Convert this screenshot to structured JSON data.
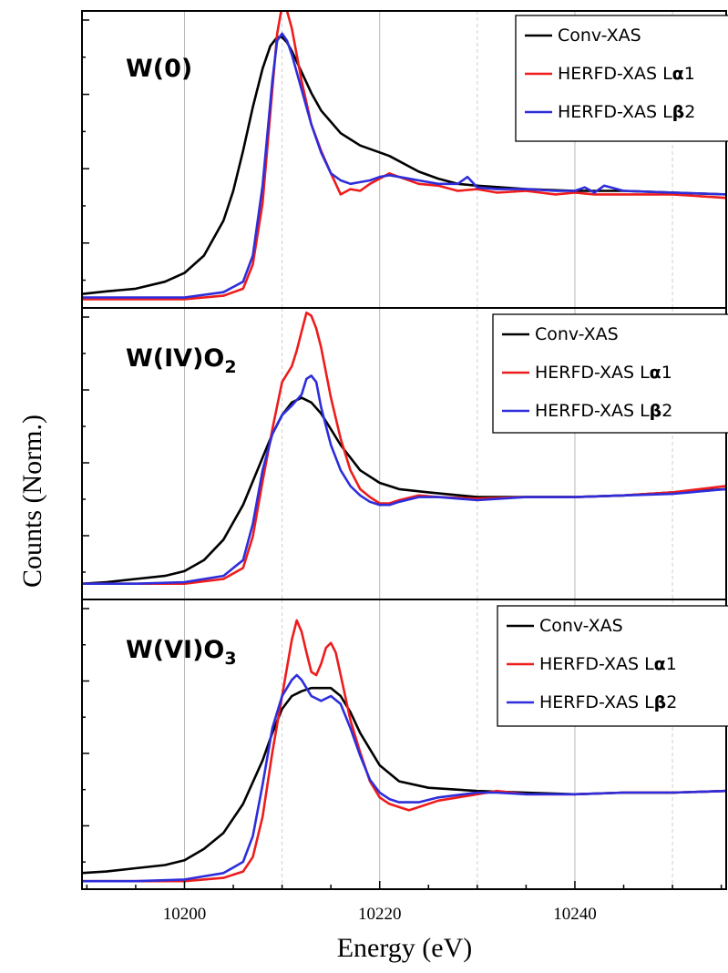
{
  "chart_data": {
    "type": "line",
    "xlabel": "Energy (eV)",
    "ylabel": "Counts (Norm.)",
    "xlim": [
      10189.5,
      10255.5
    ],
    "x_ticks": [
      "10200",
      "10220",
      "10240"
    ],
    "grid": "vertical lines at major and minor x ticks",
    "legend_placement": "top-right in each panel",
    "colors": {
      "conv": "#000000",
      "la1": "#ee1c1c",
      "lb2": "#2d2ddb"
    },
    "panels": [
      {
        "title": "W(0)",
        "title_main": "W(0)",
        "title_sub": "",
        "title_tail": "",
        "ylim": [
          -0.05,
          1.65
        ],
        "legend": [
          {
            "prefix": "Conv-XAS",
            "symbol": "",
            "suffix": ""
          },
          {
            "prefix": "HERFD-XAS L",
            "symbol": "α",
            "suffix": "1"
          },
          {
            "prefix": "HERFD-XAS L",
            "symbol": "β",
            "suffix": "2"
          }
        ],
        "series": [
          {
            "key": "conv",
            "x": [
              10189.5,
              10192,
              10195,
              10198,
              10200,
              10202,
              10204,
              10205,
              10206,
              10207,
              10208,
              10208.8,
              10209.5,
              10210,
              10210.5,
              10211,
              10212,
              10213,
              10214,
              10216,
              10218,
              10220,
              10221,
              10224,
              10226,
              10228,
              10230,
              10235,
              10240,
              10245,
              10250,
              10255.5
            ],
            "y": [
              0.03,
              0.045,
              0.06,
              0.1,
              0.15,
              0.25,
              0.45,
              0.62,
              0.85,
              1.1,
              1.32,
              1.45,
              1.5,
              1.5,
              1.47,
              1.42,
              1.3,
              1.18,
              1.08,
              0.95,
              0.88,
              0.84,
              0.82,
              0.73,
              0.69,
              0.66,
              0.65,
              0.63,
              0.62,
              0.62,
              0.61,
              0.6
            ]
          },
          {
            "key": "la1",
            "x": [
              10189.5,
              10195,
              10200,
              10204,
              10206,
              10207,
              10208,
              10209,
              10209.5,
              10210,
              10210.5,
              10211,
              10212,
              10213,
              10214,
              10215,
              10216,
              10217,
              10218,
              10219,
              10220,
              10221,
              10222,
              10224,
              10226,
              10228,
              10230,
              10232,
              10235,
              10238,
              10240,
              10242,
              10245,
              10250,
              10255.5
            ],
            "y": [
              0.0,
              0.0,
              0.0,
              0.02,
              0.06,
              0.2,
              0.55,
              1.2,
              1.52,
              1.68,
              1.65,
              1.55,
              1.25,
              1.0,
              0.85,
              0.72,
              0.6,
              0.63,
              0.62,
              0.66,
              0.69,
              0.72,
              0.7,
              0.66,
              0.65,
              0.62,
              0.63,
              0.61,
              0.62,
              0.6,
              0.61,
              0.6,
              0.6,
              0.6,
              0.58
            ]
          },
          {
            "key": "lb2",
            "x": [
              10189.5,
              10195,
              10200,
              10204,
              10206,
              10207,
              10208,
              10209,
              10209.5,
              10210,
              10210.5,
              10211,
              10212,
              10213,
              10214,
              10215,
              10216,
              10217,
              10218,
              10219,
              10220,
              10221,
              10222,
              10224,
              10226,
              10228,
              10229,
              10230,
              10232,
              10235,
              10238,
              10240,
              10241,
              10242,
              10243,
              10245,
              10250,
              10255.5
            ],
            "y": [
              0.01,
              0.01,
              0.01,
              0.04,
              0.1,
              0.25,
              0.65,
              1.25,
              1.48,
              1.52,
              1.48,
              1.4,
              1.2,
              1.0,
              0.84,
              0.72,
              0.68,
              0.66,
              0.67,
              0.68,
              0.7,
              0.71,
              0.7,
              0.68,
              0.66,
              0.66,
              0.7,
              0.64,
              0.63,
              0.63,
              0.62,
              0.62,
              0.64,
              0.61,
              0.65,
              0.62,
              0.61,
              0.6
            ]
          }
        ]
      },
      {
        "title": "W(IV)O2",
        "title_main": "W(IV)O",
        "title_sub": "2",
        "title_tail": "",
        "ylim": [
          -0.1,
          1.75
        ],
        "legend": [
          {
            "prefix": "Conv-XAS",
            "symbol": "",
            "suffix": ""
          },
          {
            "prefix": "HERFD-XAS L",
            "symbol": "α",
            "suffix": "1"
          },
          {
            "prefix": "HERFD-XAS L",
            "symbol": "β",
            "suffix": "2"
          }
        ],
        "series": [
          {
            "key": "conv",
            "x": [
              10189.5,
              10192,
              10195,
              10198,
              10200,
              10202,
              10204,
              10206,
              10208,
              10209,
              10210,
              10211,
              10212,
              10213,
              10214,
              10215,
              10216,
              10218,
              10220,
              10222,
              10225,
              10230,
              10235,
              10240,
              10245,
              10250,
              10255.5
            ],
            "y": [
              0.0,
              0.01,
              0.03,
              0.05,
              0.08,
              0.15,
              0.28,
              0.5,
              0.8,
              0.95,
              1.07,
              1.15,
              1.18,
              1.15,
              1.08,
              0.98,
              0.88,
              0.72,
              0.64,
              0.6,
              0.58,
              0.55,
              0.55,
              0.55,
              0.56,
              0.58,
              0.6
            ]
          },
          {
            "key": "la1",
            "x": [
              10189.5,
              10195,
              10200,
              10204,
              10206,
              10207,
              10208,
              10209,
              10210,
              10211,
              10211.5,
              10212,
              10212.5,
              10213,
              10213.5,
              10214,
              10215,
              10216,
              10217,
              10218,
              10219,
              10220,
              10221,
              10222,
              10224,
              10226,
              10230,
              10235,
              10240,
              10245,
              10250,
              10255.5
            ],
            "y": [
              0.0,
              0.0,
              0.0,
              0.03,
              0.1,
              0.3,
              0.65,
              0.98,
              1.28,
              1.38,
              1.48,
              1.6,
              1.72,
              1.7,
              1.62,
              1.5,
              1.18,
              0.92,
              0.72,
              0.6,
              0.55,
              0.51,
              0.51,
              0.53,
              0.56,
              0.55,
              0.54,
              0.55,
              0.55,
              0.56,
              0.58,
              0.62
            ]
          },
          {
            "key": "lb2",
            "x": [
              10189.5,
              10195,
              10200,
              10204,
              10206,
              10207,
              10208,
              10209,
              10210,
              10211,
              10212,
              10212.5,
              10213,
              10213.5,
              10214,
              10215,
              10216,
              10217,
              10218,
              10219,
              10220,
              10221,
              10222,
              10224,
              10226,
              10230,
              10235,
              10240,
              10245,
              10250,
              10255.5
            ],
            "y": [
              0.0,
              0.0,
              0.01,
              0.05,
              0.15,
              0.38,
              0.72,
              0.95,
              1.07,
              1.13,
              1.2,
              1.3,
              1.32,
              1.28,
              1.12,
              0.88,
              0.72,
              0.62,
              0.56,
              0.52,
              0.5,
              0.5,
              0.52,
              0.55,
              0.55,
              0.53,
              0.55,
              0.55,
              0.56,
              0.57,
              0.6
            ]
          }
        ]
      },
      {
        "title": "W(VI)O3",
        "title_main": "W(VI)O",
        "title_sub": "3",
        "title_tail": "",
        "ylim": [
          -0.05,
          1.75
        ],
        "legend": [
          {
            "prefix": "Conv-XAS",
            "symbol": "",
            "suffix": ""
          },
          {
            "prefix": "HERFD-XAS L",
            "symbol": "α",
            "suffix": "1"
          },
          {
            "prefix": "HERFD-XAS L",
            "symbol": "β",
            "suffix": "2"
          }
        ],
        "series": [
          {
            "key": "conv",
            "x": [
              10189.5,
              10192,
              10195,
              10198,
              10200,
              10202,
              10204,
              10206,
              10208,
              10209,
              10210,
              10211,
              10212,
              10213,
              10214,
              10215,
              10216,
              10217,
              10218,
              10220,
              10222,
              10225,
              10230,
              10235,
              10240,
              10245,
              10250,
              10255.5
            ],
            "y": [
              0.05,
              0.06,
              0.08,
              0.1,
              0.13,
              0.2,
              0.3,
              0.48,
              0.75,
              0.92,
              1.07,
              1.15,
              1.18,
              1.2,
              1.2,
              1.2,
              1.15,
              1.05,
              0.92,
              0.72,
              0.62,
              0.58,
              0.56,
              0.55,
              0.54,
              0.55,
              0.55,
              0.56
            ]
          },
          {
            "key": "la1",
            "x": [
              10189.5,
              10195,
              10200,
              10204,
              10206,
              10207,
              10208,
              10209,
              10210,
              10211,
              10211.5,
              10212,
              10212.5,
              10213,
              10213.5,
              10214,
              10214.5,
              10215,
              10215.5,
              10216,
              10217,
              10218,
              10219,
              10220,
              10221,
              10222,
              10223,
              10224,
              10226,
              10228,
              10230,
              10232,
              10235,
              10240,
              10245,
              10250,
              10255.5
            ],
            "y": [
              0.0,
              0.0,
              0.0,
              0.02,
              0.06,
              0.15,
              0.4,
              0.8,
              1.15,
              1.5,
              1.62,
              1.55,
              1.42,
              1.3,
              1.28,
              1.35,
              1.45,
              1.48,
              1.42,
              1.28,
              1.0,
              0.8,
              0.62,
              0.52,
              0.48,
              0.46,
              0.44,
              0.46,
              0.5,
              0.52,
              0.54,
              0.56,
              0.54,
              0.54,
              0.55,
              0.55,
              0.56
            ]
          },
          {
            "key": "lb2",
            "x": [
              10189.5,
              10195,
              10200,
              10204,
              10206,
              10207,
              10208,
              10209,
              10210,
              10211,
              10211.5,
              10212,
              10212.5,
              10213,
              10214,
              10215,
              10216,
              10217,
              10218,
              10219,
              10220,
              10221,
              10222,
              10224,
              10226,
              10230,
              10232,
              10235,
              10240,
              10245,
              10250,
              10255.5
            ],
            "y": [
              0.0,
              0.0,
              0.01,
              0.05,
              0.12,
              0.28,
              0.6,
              0.95,
              1.15,
              1.25,
              1.28,
              1.25,
              1.2,
              1.15,
              1.12,
              1.15,
              1.1,
              0.95,
              0.78,
              0.63,
              0.55,
              0.51,
              0.49,
              0.49,
              0.52,
              0.55,
              0.55,
              0.54,
              0.54,
              0.55,
              0.55,
              0.56
            ]
          }
        ]
      }
    ]
  }
}
